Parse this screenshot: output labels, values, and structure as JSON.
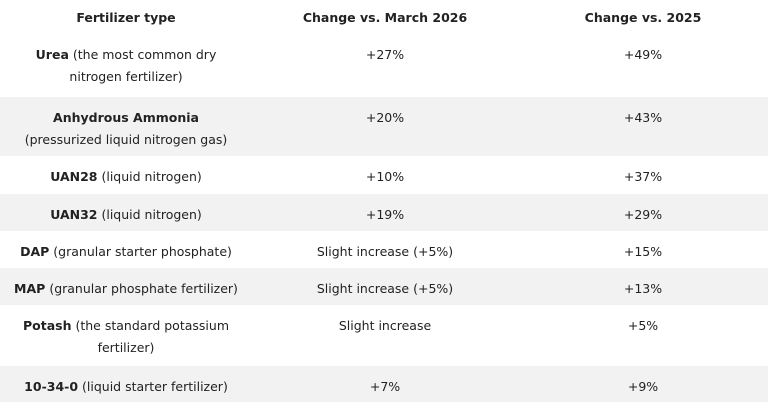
{
  "table": {
    "headers": [
      "Fertilizer type",
      "Change vs. March 2026",
      "Change vs. 2025"
    ],
    "rows": [
      {
        "name": "Urea",
        "description": "(the most common dry nitrogen fertilizer)",
        "change_march_2026": "+27%",
        "change_2025": "+49%"
      },
      {
        "name": "Anhydrous Ammonia",
        "description": "(pressurized liquid nitrogen gas)",
        "change_march_2026": "+20%",
        "change_2025": "+43%"
      },
      {
        "name": "UAN28",
        "description": "(liquid nitrogen)",
        "change_march_2026": "+10%",
        "change_2025": "+37%"
      },
      {
        "name": "UAN32",
        "description": "(liquid nitrogen)",
        "change_march_2026": "+19%",
        "change_2025": "+29%"
      },
      {
        "name": "DAP",
        "description": "(granular starter phosphate)",
        "change_march_2026": "Slight increase (+5%)",
        "change_2025": "+15%"
      },
      {
        "name": "MAP",
        "description": "(granular phosphate fertilizer)",
        "change_march_2026": "Slight increase (+5%)",
        "change_2025": "+13%"
      },
      {
        "name": "Potash",
        "description": "(the standard potassium fertilizer)",
        "change_march_2026": "Slight increase",
        "change_2025": "+5%"
      },
      {
        "name": "10-34-0",
        "description": "(liquid starter fertilizer)",
        "change_march_2026": "+7%",
        "change_2025": "+9%"
      }
    ]
  }
}
